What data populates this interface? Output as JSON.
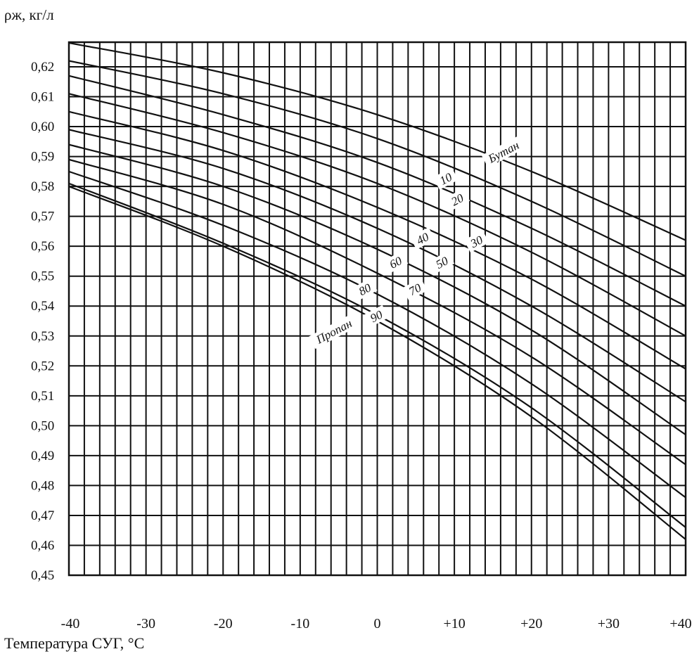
{
  "chart_data": {
    "type": "line",
    "title": "",
    "xlabel": "Температура СУГ, °C",
    "ylabel": "ρж, кг/л",
    "xlim": [
      -40,
      40
    ],
    "ylim": [
      0.45,
      0.625
    ],
    "grid": true,
    "x_ticks": [
      "-40",
      "-30",
      "-20",
      "-10",
      "0",
      "+10",
      "+20",
      "+30",
      "+40"
    ],
    "y_ticks": [
      "0,45",
      "0,46",
      "0,47",
      "0,48",
      "0,49",
      "0,50",
      "0,51",
      "0,52",
      "0,53",
      "0,54",
      "0,55",
      "0,56",
      "0,57",
      "0,58",
      "0,59",
      "0,60",
      "0,61",
      "0,62"
    ],
    "series": [
      {
        "name": "Бутан",
        "x": [
          -40,
          -20,
          0,
          20,
          40
        ],
        "y": [
          0.628,
          0.618,
          0.604,
          0.585,
          0.562
        ]
      },
      {
        "name": "10",
        "x": [
          -40,
          -20,
          0,
          20,
          40
        ],
        "y": [
          0.622,
          0.611,
          0.596,
          0.575,
          0.55
        ]
      },
      {
        "name": "20",
        "x": [
          -40,
          -20,
          0,
          20,
          40
        ],
        "y": [
          0.617,
          0.604,
          0.588,
          0.566,
          0.54
        ]
      },
      {
        "name": "30",
        "x": [
          -40,
          -20,
          0,
          20,
          40
        ],
        "y": [
          0.611,
          0.598,
          0.581,
          0.558,
          0.53
        ]
      },
      {
        "name": "40",
        "x": [
          -40,
          -20,
          0,
          20,
          40
        ],
        "y": [
          0.605,
          0.592,
          0.573,
          0.549,
          0.519
        ]
      },
      {
        "name": "50",
        "x": [
          -40,
          -20,
          0,
          20,
          40
        ],
        "y": [
          0.599,
          0.586,
          0.566,
          0.54,
          0.508
        ]
      },
      {
        "name": "60",
        "x": [
          -40,
          -20,
          0,
          20,
          40
        ],
        "y": [
          0.594,
          0.58,
          0.559,
          0.532,
          0.497
        ]
      },
      {
        "name": "70",
        "x": [
          -40,
          -20,
          0,
          20,
          40
        ],
        "y": [
          0.589,
          0.574,
          0.551,
          0.523,
          0.487
        ]
      },
      {
        "name": "80",
        "x": [
          -40,
          -20,
          0,
          20,
          40
        ],
        "y": [
          0.585,
          0.567,
          0.544,
          0.514,
          0.476
        ]
      },
      {
        "name": "90",
        "x": [
          -40,
          -20,
          0,
          20,
          40
        ],
        "y": [
          0.581,
          0.561,
          0.537,
          0.506,
          0.466
        ]
      },
      {
        "name": "Пропан",
        "x": [
          -40,
          -20,
          0,
          20,
          40
        ],
        "y": [
          0.58,
          0.56,
          0.535,
          0.503,
          0.462
        ]
      }
    ],
    "curve_labels": [
      {
        "text": "Бутан",
        "x": 16.5,
        "y": 0.591,
        "rotate": -28
      },
      {
        "text": "10",
        "x": 9.0,
        "y": 0.582,
        "rotate": -28
      },
      {
        "text": "20",
        "x": 10.5,
        "y": 0.575,
        "rotate": -28
      },
      {
        "text": "30",
        "x": 13.0,
        "y": 0.561,
        "rotate": -28
      },
      {
        "text": "40",
        "x": 6.0,
        "y": 0.562,
        "rotate": -28
      },
      {
        "text": "50",
        "x": 8.5,
        "y": 0.554,
        "rotate": -28
      },
      {
        "text": "60",
        "x": 2.5,
        "y": 0.554,
        "rotate": -28
      },
      {
        "text": "70",
        "x": 5.0,
        "y": 0.545,
        "rotate": -28
      },
      {
        "text": "80",
        "x": -1.5,
        "y": 0.545,
        "rotate": -28
      },
      {
        "text": "90",
        "x": 0.0,
        "y": 0.536,
        "rotate": -28
      },
      {
        "text": "Пропан",
        "x": -5.5,
        "y": 0.531,
        "rotate": -28
      }
    ]
  }
}
